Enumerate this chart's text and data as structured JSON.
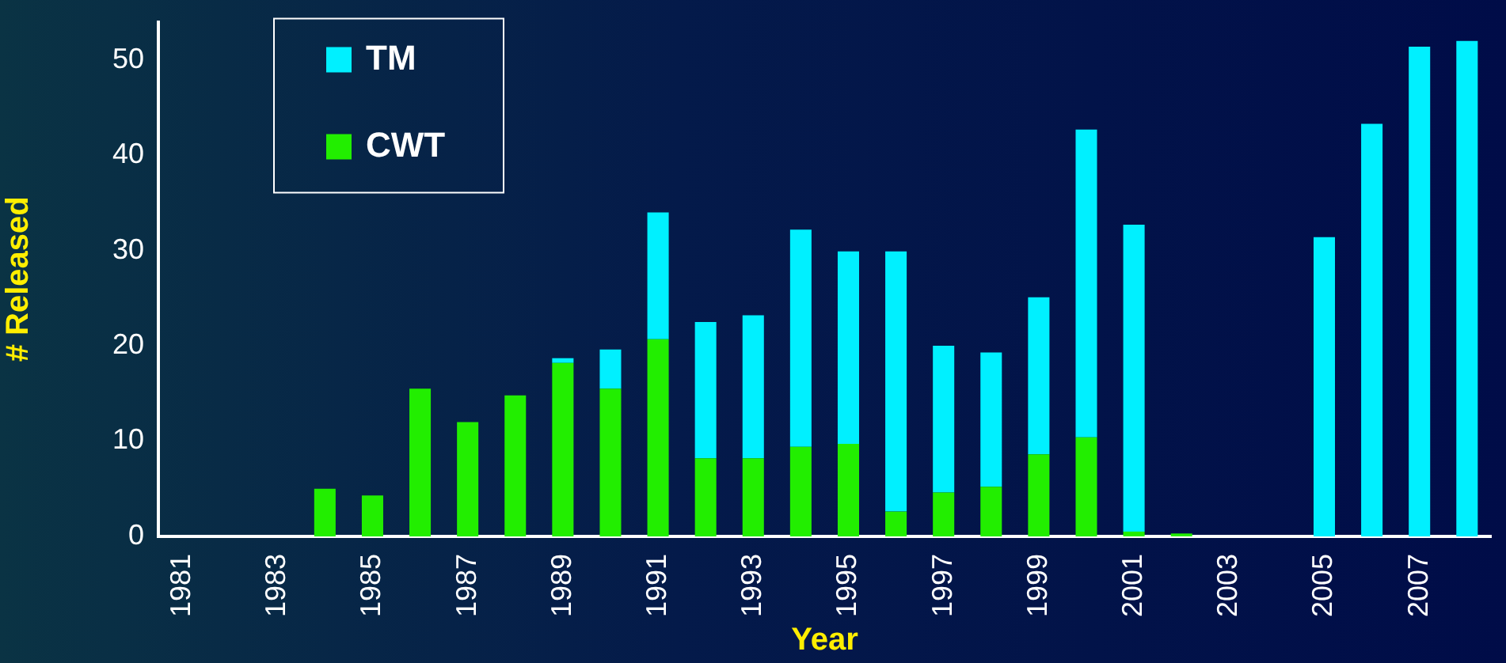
{
  "chart_data": {
    "type": "bar",
    "xlabel": "Year",
    "ylabel": "# Released",
    "stacked": true,
    "categories": [
      "1981",
      null,
      "1983",
      null,
      "1985",
      null,
      "1987",
      null,
      "1989",
      null,
      "1991",
      null,
      "1993",
      null,
      "1995",
      null,
      "1997",
      null,
      "1999",
      null,
      "2001",
      null,
      "2003",
      null,
      "2005",
      null,
      "2007",
      null
    ],
    "series": [
      {
        "name": "CWT",
        "color": "#22ee00",
        "values": [
          0,
          0,
          0,
          5,
          4.3,
          15.5,
          12,
          14.8,
          18.2,
          15.5,
          20.7,
          8.2,
          8.2,
          9.4,
          9.7,
          2.6,
          4.6,
          5.2,
          8.6,
          10.4,
          0.5,
          0.3,
          0,
          0,
          0,
          0,
          0,
          0
        ]
      },
      {
        "name": "TM",
        "color": "#00f0ff",
        "values": [
          0,
          0,
          0,
          0,
          0,
          0,
          0,
          0,
          0.5,
          4.1,
          13.3,
          14.3,
          15,
          22.8,
          20.2,
          27.3,
          15.4,
          14.1,
          16.5,
          32.3,
          32.2,
          null,
          null,
          null,
          31.4,
          43.3,
          51.4,
          52
        ]
      }
    ],
    "ylim": [
      0,
      54
    ],
    "yticks": [
      0,
      10,
      20,
      30,
      40,
      50
    ],
    "grid": false,
    "legend": "top left"
  }
}
